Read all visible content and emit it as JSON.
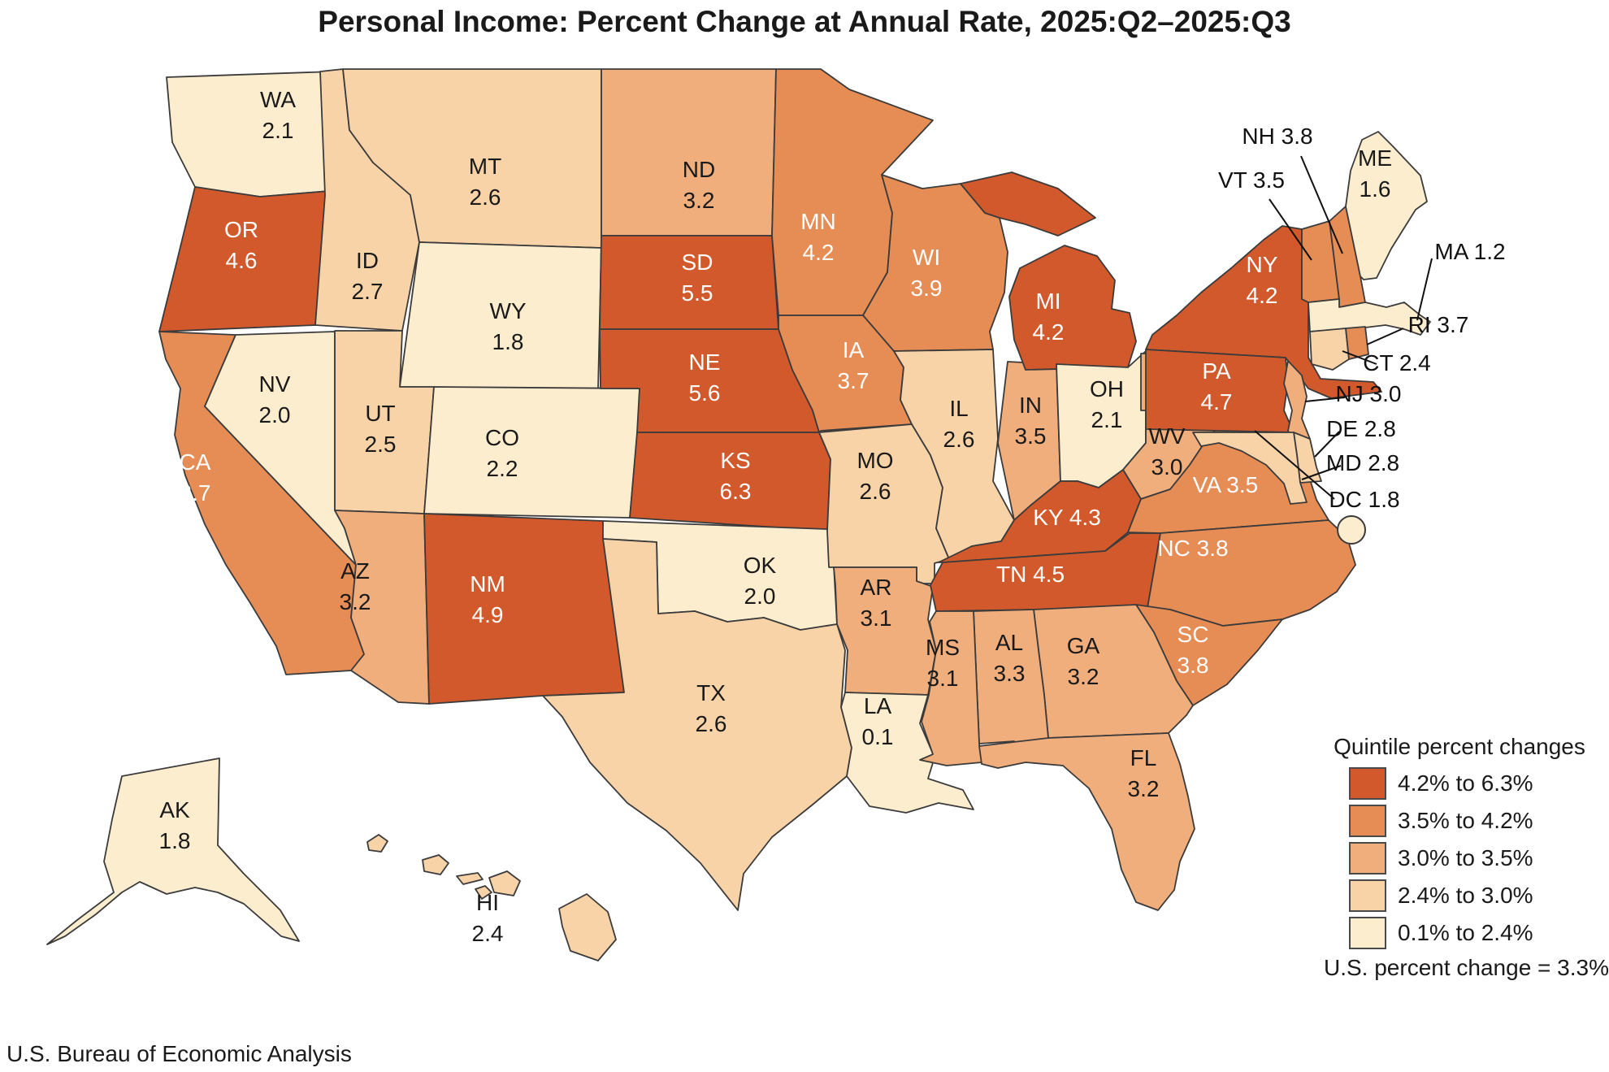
{
  "title": "Personal Income: Percent Change at Annual Rate, 2025:Q2–2025:Q3",
  "source": "U.S. Bureau of Economic Analysis",
  "legend": {
    "title": "Quintile percent changes",
    "note": "U.S. percent change = 3.3%",
    "entries": [
      {
        "label": "4.2% to 6.3%",
        "color": "#D2592B"
      },
      {
        "label": "3.5% to 4.2%",
        "color": "#E68C55"
      },
      {
        "label": "3.0% to 3.5%",
        "color": "#F0AE7C"
      },
      {
        "label": "2.4% to 3.0%",
        "color": "#F8D3A7"
      },
      {
        "label": "0.1% to 2.4%",
        "color": "#FCEDCE"
      }
    ]
  },
  "chart_data": {
    "type": "heatmap",
    "subtype": "choropleth-map",
    "region": "United States (states + DC)",
    "metric": "Personal income, percent change at annual rate",
    "period": "2025:Q2–2025:Q3",
    "us_percent_change": 3.3,
    "quintile_ranges": [
      "4.2% to 6.3%",
      "3.5% to 4.2%",
      "3.0% to 3.5%",
      "2.4% to 3.0%",
      "0.1% to 2.4%"
    ],
    "states": [
      {
        "abbr": "WA",
        "value": 2.1,
        "quintile": 5
      },
      {
        "abbr": "OR",
        "value": 4.6,
        "quintile": 1
      },
      {
        "abbr": "CA",
        "value": 3.7,
        "quintile": 2
      },
      {
        "abbr": "NV",
        "value": 2.0,
        "quintile": 5
      },
      {
        "abbr": "ID",
        "value": 2.7,
        "quintile": 4
      },
      {
        "abbr": "MT",
        "value": 2.6,
        "quintile": 4
      },
      {
        "abbr": "WY",
        "value": 1.8,
        "quintile": 5
      },
      {
        "abbr": "UT",
        "value": 2.5,
        "quintile": 4
      },
      {
        "abbr": "CO",
        "value": 2.2,
        "quintile": 5
      },
      {
        "abbr": "AZ",
        "value": 3.2,
        "quintile": 3
      },
      {
        "abbr": "NM",
        "value": 4.9,
        "quintile": 1
      },
      {
        "abbr": "ND",
        "value": 3.2,
        "quintile": 3
      },
      {
        "abbr": "SD",
        "value": 5.5,
        "quintile": 1
      },
      {
        "abbr": "NE",
        "value": 5.6,
        "quintile": 1
      },
      {
        "abbr": "KS",
        "value": 6.3,
        "quintile": 1
      },
      {
        "abbr": "OK",
        "value": 2.0,
        "quintile": 5
      },
      {
        "abbr": "TX",
        "value": 2.6,
        "quintile": 4
      },
      {
        "abbr": "MN",
        "value": 4.2,
        "quintile": 2
      },
      {
        "abbr": "IA",
        "value": 3.7,
        "quintile": 2
      },
      {
        "abbr": "MO",
        "value": 2.6,
        "quintile": 4
      },
      {
        "abbr": "AR",
        "value": 3.1,
        "quintile": 3
      },
      {
        "abbr": "LA",
        "value": 0.1,
        "quintile": 5
      },
      {
        "abbr": "WI",
        "value": 3.9,
        "quintile": 2
      },
      {
        "abbr": "IL",
        "value": 2.6,
        "quintile": 4
      },
      {
        "abbr": "IN",
        "value": 3.5,
        "quintile": 3
      },
      {
        "abbr": "MI",
        "value": 4.2,
        "quintile": 1
      },
      {
        "abbr": "OH",
        "value": 2.1,
        "quintile": 5
      },
      {
        "abbr": "KY",
        "value": 4.3,
        "quintile": 1
      },
      {
        "abbr": "TN",
        "value": 4.5,
        "quintile": 1
      },
      {
        "abbr": "MS",
        "value": 3.1,
        "quintile": 3
      },
      {
        "abbr": "AL",
        "value": 3.3,
        "quintile": 3
      },
      {
        "abbr": "GA",
        "value": 3.2,
        "quintile": 3
      },
      {
        "abbr": "FL",
        "value": 3.2,
        "quintile": 3
      },
      {
        "abbr": "SC",
        "value": 3.8,
        "quintile": 2
      },
      {
        "abbr": "NC",
        "value": 3.8,
        "quintile": 2
      },
      {
        "abbr": "VA",
        "value": 3.5,
        "quintile": 2
      },
      {
        "abbr": "WV",
        "value": 3.0,
        "quintile": 3
      },
      {
        "abbr": "PA",
        "value": 4.7,
        "quintile": 1
      },
      {
        "abbr": "NY",
        "value": 4.2,
        "quintile": 1
      },
      {
        "abbr": "NJ",
        "value": 3.0,
        "quintile": 3
      },
      {
        "abbr": "DE",
        "value": 2.8,
        "quintile": 4
      },
      {
        "abbr": "MD",
        "value": 2.8,
        "quintile": 4
      },
      {
        "abbr": "DC",
        "value": 1.8,
        "quintile": 5
      },
      {
        "abbr": "CT",
        "value": 2.4,
        "quintile": 4
      },
      {
        "abbr": "RI",
        "value": 3.7,
        "quintile": 2
      },
      {
        "abbr": "MA",
        "value": 1.2,
        "quintile": 5
      },
      {
        "abbr": "VT",
        "value": 3.5,
        "quintile": 2
      },
      {
        "abbr": "NH",
        "value": 3.8,
        "quintile": 2
      },
      {
        "abbr": "ME",
        "value": 1.6,
        "quintile": 5
      },
      {
        "abbr": "AK",
        "value": 1.8,
        "quintile": 5
      },
      {
        "abbr": "HI",
        "value": 2.4,
        "quintile": 4
      }
    ]
  }
}
